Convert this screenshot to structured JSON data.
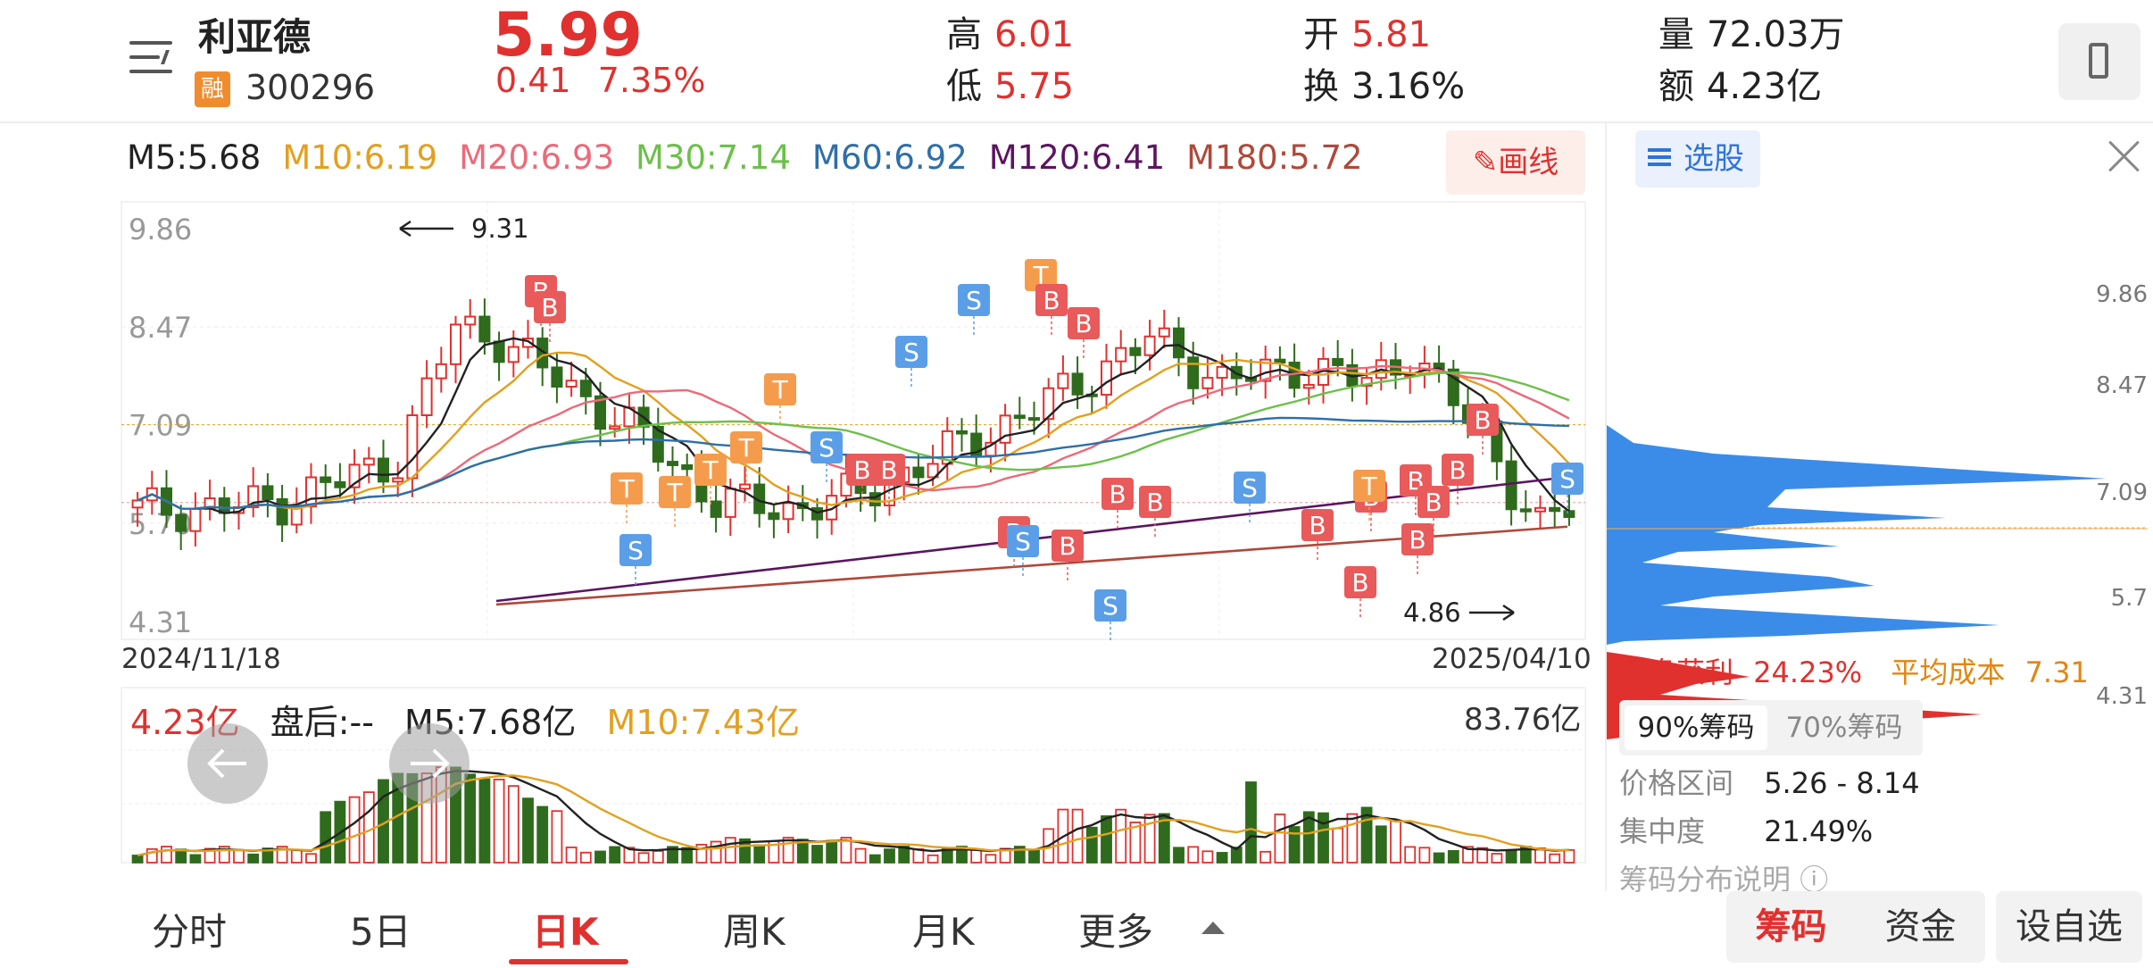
{
  "header": {
    "stock_name": "利亚德",
    "rong_badge": "融",
    "code": "300296",
    "price": "5.99",
    "change": "0.41",
    "change_pct": "7.35%",
    "high_label": "高",
    "high": "6.01",
    "low_label": "低",
    "low": "5.75",
    "open_label": "开",
    "open": "5.81",
    "turnover_label": "换",
    "turnover": "3.16%",
    "volume_label": "量",
    "volume": "72.03万",
    "amount_label": "额",
    "amount": "4.23亿"
  },
  "ma_legend": [
    {
      "label": "M5:5.68",
      "color": "#222222"
    },
    {
      "label": "M10:6.19",
      "color": "#e3a01f"
    },
    {
      "label": "M20:6.93",
      "color": "#ec6a7a"
    },
    {
      "label": "M30:7.14",
      "color": "#6cc04a"
    },
    {
      "label": "M60:6.92",
      "color": "#2e6fa8"
    },
    {
      "label": "M120:6.41",
      "color": "#5b1560"
    },
    {
      "label": "M180:5.72",
      "color": "#b0483a"
    }
  ],
  "draw_button": "画线",
  "chart_data": {
    "type": "candlestick",
    "y_ticks": [
      "9.86",
      "8.47",
      "7.09",
      "5.70",
      "4.31"
    ],
    "ylim": [
      4.31,
      9.86
    ],
    "start_date": "2024/11/18",
    "end_date": "2025/04/10",
    "high_marker": "9.31",
    "low_marker": "4.86",
    "ref_lines": [
      7.09,
      5.99
    ],
    "signal_legend": {
      "B": "#e95a5a",
      "S": "#5b9ee8",
      "T": "#f59c4c"
    }
  },
  "volume": {
    "amount": "4.23亿",
    "after_hours": "盘后:--",
    "m5": "M5:7.68亿",
    "m10": "M10:7.43亿",
    "max": "83.76亿",
    "colors": {
      "m5": "#222222",
      "m10": "#e3a01f"
    }
  },
  "chips": {
    "select_label": "选股",
    "y_ticks": [
      "9.86",
      "8.47",
      "7.09",
      "5.7",
      "4.31"
    ],
    "profit_label": "收盘获利",
    "profit": "24.23%",
    "avg_cost_label": "平均成本",
    "avg_cost": "7.31",
    "tab_90": "90%筹码",
    "tab_70": "70%筹码",
    "range_label": "价格区间",
    "range": "5.26 - 8.14",
    "concentration_label": "集中度",
    "concentration": "21.49%",
    "explain": "筹码分布说明",
    "colors": {
      "profit": "#e0312f",
      "loss": "#3b8ce8"
    }
  },
  "bottom_tabs": {
    "fenshi": "分时",
    "five_day": "5日",
    "day_k": "日K",
    "week_k": "周K",
    "month_k": "月K",
    "more": "更多",
    "chouma": "筹码",
    "zijin": "资金",
    "zixuan": "设自选"
  }
}
